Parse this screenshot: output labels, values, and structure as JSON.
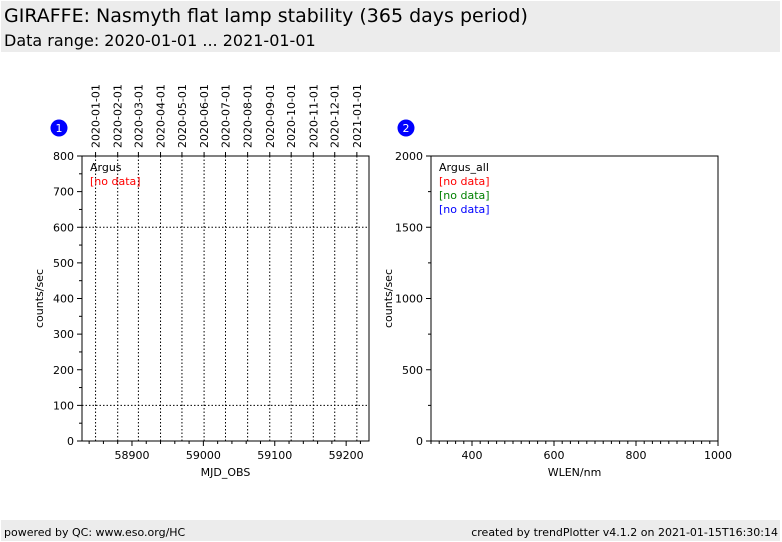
{
  "header": {
    "title": "GIRAFFE: Nasmyth flat lamp stability (365 days period)",
    "subtitle": "Data range: 2020-01-01 ... 2021-01-01"
  },
  "footer": {
    "left": "powered by QC: www.eso.org/HC",
    "right": "created by trendPlotter v4.1.2 on 2021-01-15T16:30:14"
  },
  "chart_data": [
    {
      "type": "scatter",
      "badge": "1",
      "xlabel": "MJD_OBS",
      "ylabel": "counts/sec",
      "xlim": [
        58830,
        59232
      ],
      "ylim": [
        0,
        800
      ],
      "x_ticks": [
        58900,
        59000,
        59100,
        59200
      ],
      "y_ticks": [
        0,
        100,
        200,
        300,
        400,
        500,
        600,
        700,
        800
      ],
      "top_date_ticks": [
        {
          "label": "2020-01-01",
          "mjd": 58849
        },
        {
          "label": "2020-02-01",
          "mjd": 58880
        },
        {
          "label": "2020-03-01",
          "mjd": 58909
        },
        {
          "label": "2020-04-01",
          "mjd": 58940
        },
        {
          "label": "2020-05-01",
          "mjd": 58970
        },
        {
          "label": "2020-06-01",
          "mjd": 59001
        },
        {
          "label": "2020-07-01",
          "mjd": 59031
        },
        {
          "label": "2020-08-01",
          "mjd": 59062
        },
        {
          "label": "2020-09-01",
          "mjd": 59093
        },
        {
          "label": "2020-10-01",
          "mjd": 59123
        },
        {
          "label": "2020-11-01",
          "mjd": 59154
        },
        {
          "label": "2020-12-01",
          "mjd": 59184
        },
        {
          "label": "2021-01-01",
          "mjd": 59215
        }
      ],
      "reference_lines_y": [
        100,
        600
      ],
      "legend": [
        {
          "text": "Argus",
          "color": "#000000"
        },
        {
          "text": "[no data]",
          "color": "#ff0000"
        }
      ],
      "series": []
    },
    {
      "type": "scatter",
      "badge": "2",
      "xlabel": "WLEN/nm",
      "ylabel": "counts/sec",
      "xlim": [
        300,
        1000
      ],
      "ylim": [
        0,
        2000
      ],
      "x_ticks": [
        400,
        600,
        800,
        1000
      ],
      "y_ticks": [
        0,
        500,
        1000,
        1500,
        2000
      ],
      "legend": [
        {
          "text": "Argus_all",
          "color": "#000000"
        },
        {
          "text": "[no data]",
          "color": "#ff0000"
        },
        {
          "text": "[no data]",
          "color": "#008000"
        },
        {
          "text": "[no data]",
          "color": "#0000ff"
        }
      ],
      "series": []
    }
  ],
  "colors": {
    "badge": "#0000ff",
    "band": "#ececec"
  }
}
